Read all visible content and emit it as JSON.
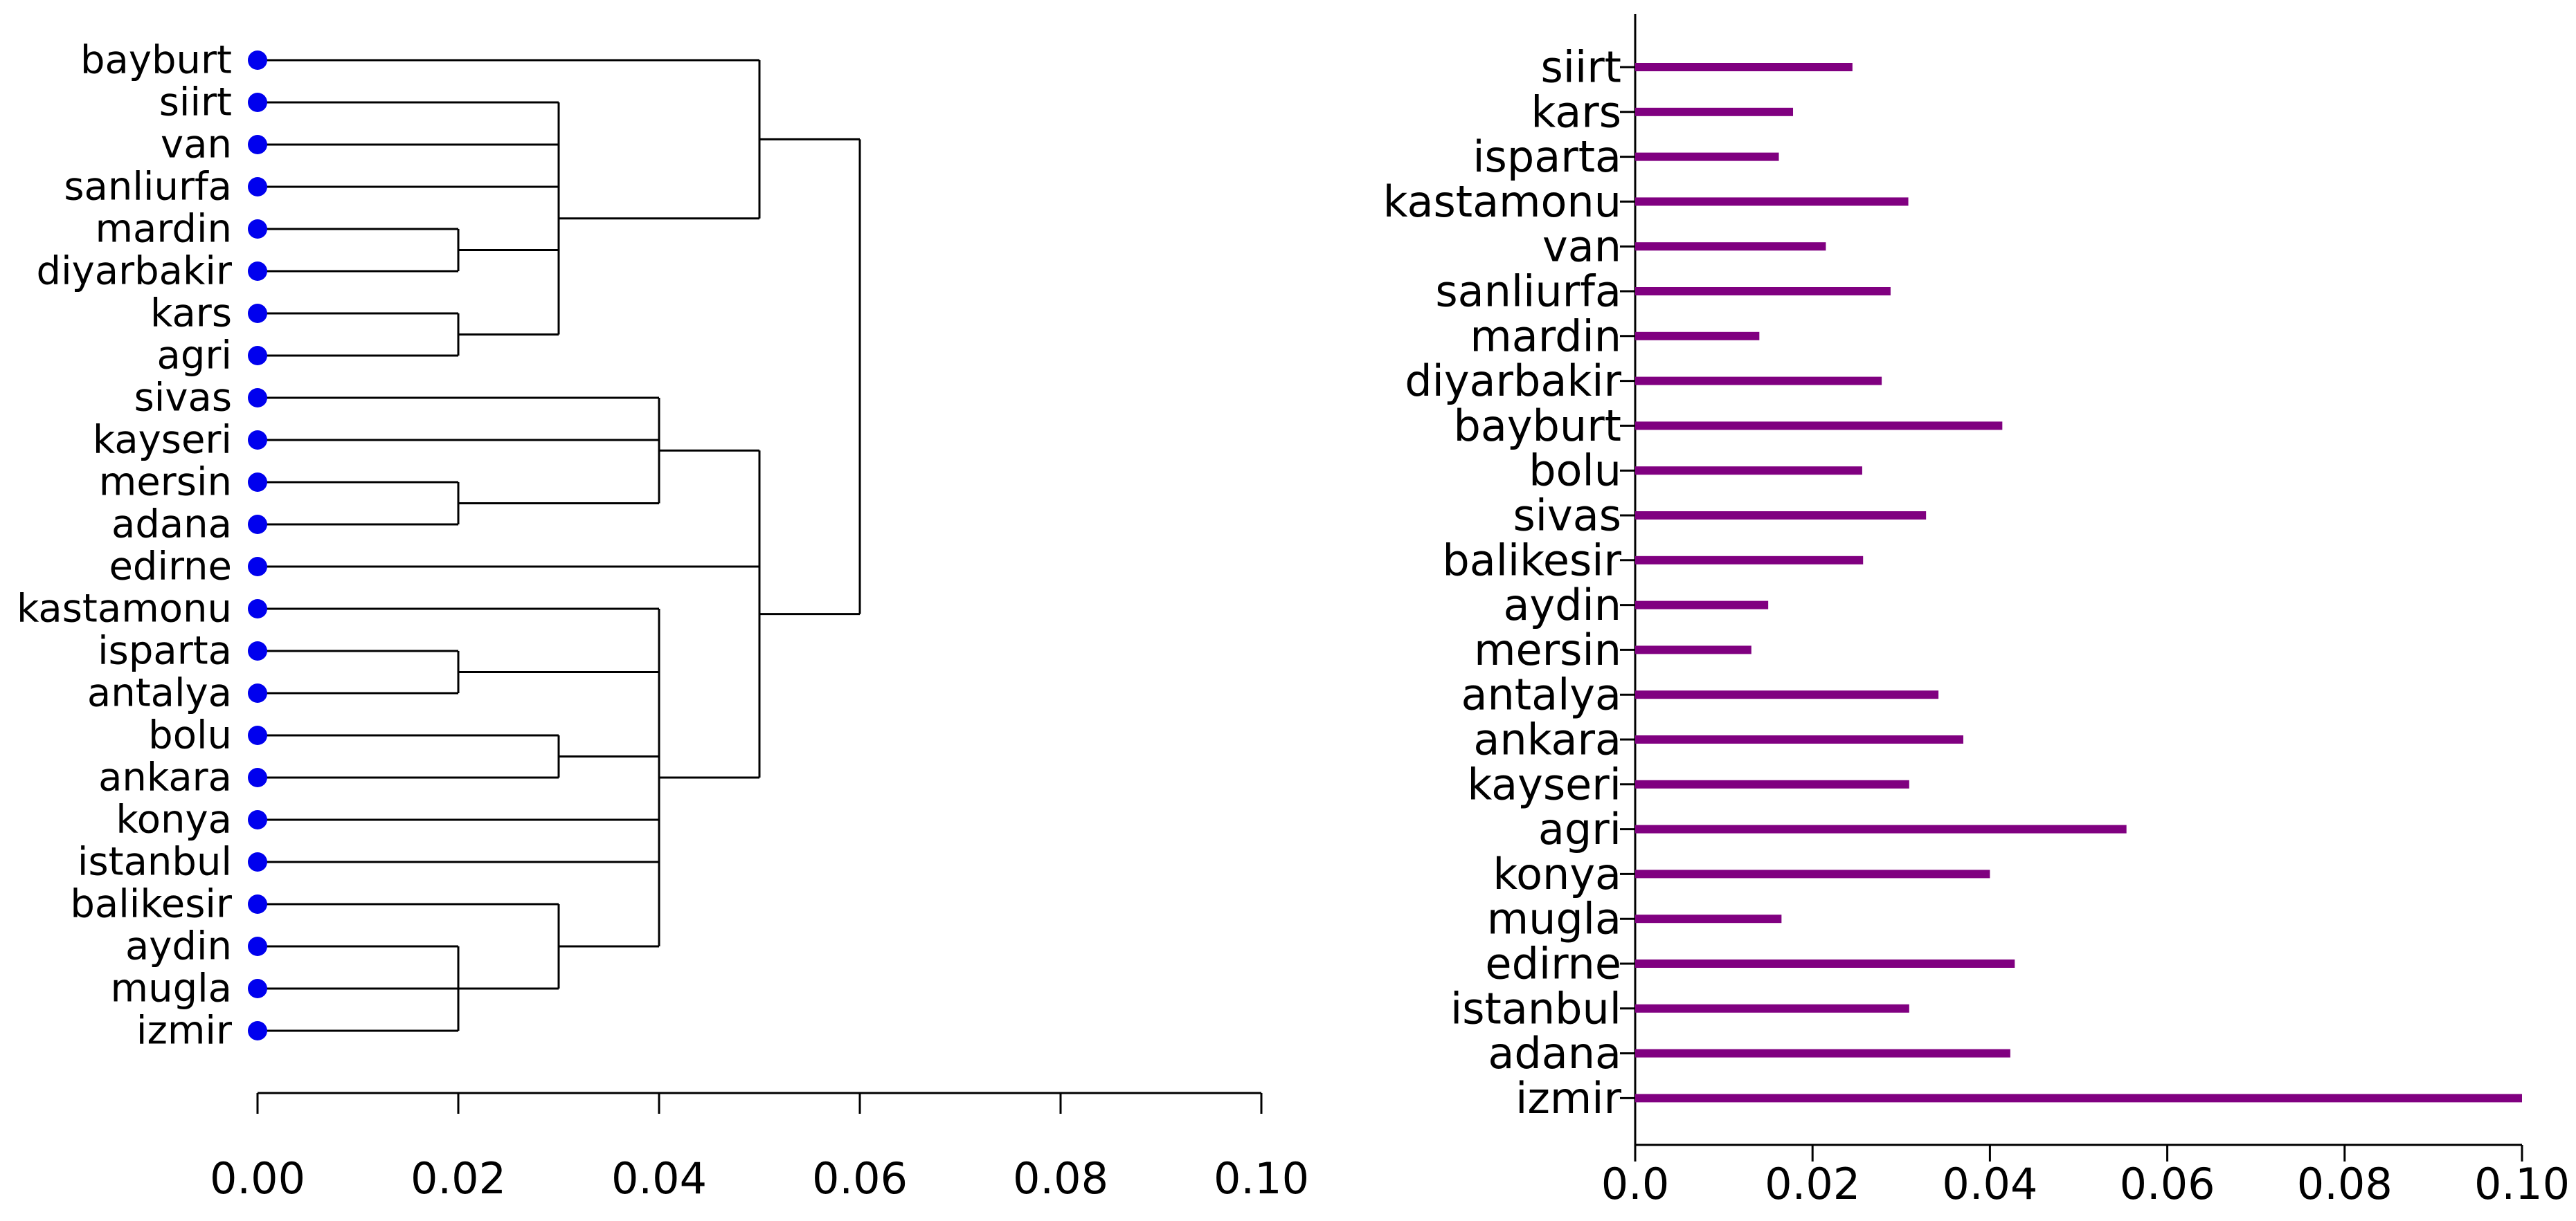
{
  "chart_data": [
    {
      "type": "dendrogram",
      "title": "",
      "xlabel": "",
      "ylabel": "",
      "xlim": [
        0,
        0.1
      ],
      "x_ticks": [
        "0.00",
        "0.02",
        "0.04",
        "0.06",
        "0.08",
        "0.10"
      ],
      "leaves": [
        "bayburt",
        "siirt",
        "van",
        "sanliurfa",
        "mardin",
        "diyarbakir",
        "kars",
        "agri",
        "sivas",
        "kayseri",
        "mersin",
        "adana",
        "edirne",
        "kastamonu",
        "isparta",
        "antalya",
        "bolu",
        "ankara",
        "konya",
        "istanbul",
        "balikesir",
        "aydin",
        "mugla",
        "izmir"
      ],
      "merges": [
        {
          "members": [
            "mardin",
            "diyarbakir"
          ],
          "height": 0.02
        },
        {
          "members": [
            "kars",
            "agri"
          ],
          "height": 0.02
        },
        {
          "members": [
            "mersin",
            "adana"
          ],
          "height": 0.02
        },
        {
          "members": [
            "isparta",
            "antalya"
          ],
          "height": 0.02
        },
        {
          "members": [
            "aydin",
            "mugla",
            "izmir"
          ],
          "height": 0.02
        },
        {
          "members": [
            "bolu",
            "ankara"
          ],
          "height": 0.03
        },
        {
          "members": [
            "balikesir",
            "aydin+mugla+izmir"
          ],
          "height": 0.03
        },
        {
          "members": [
            "siirt",
            "van",
            "sanliurfa",
            "mardin+diyarbakir",
            "kars+agri"
          ],
          "height": 0.03
        },
        {
          "members": [
            "sivas",
            "kayseri",
            "mersin+adana"
          ],
          "height": 0.04
        },
        {
          "members": [
            "kastamonu",
            "isparta+antalya",
            "bolu+ankara",
            "konya",
            "istanbul",
            "balikesir+aydin+mugla+izmir"
          ],
          "height": 0.04
        },
        {
          "members": [
            "bayburt",
            "siirt+van+sanliurfa+mardin+diyarbakir+kars+agri"
          ],
          "height": 0.05
        },
        {
          "members": [
            "sivas+kayseri+mersin+adana",
            "edirne",
            "kastamonu+...+izmir"
          ],
          "height": 0.05
        },
        {
          "members": [
            "bayburt+...+agri",
            "sivas+...+izmir"
          ],
          "height": 0.06
        }
      ],
      "colors": {
        "leaf_marker": "#0000ee",
        "line": "#000000"
      }
    },
    {
      "type": "bar",
      "orientation": "horizontal",
      "title": "",
      "xlabel": "",
      "ylabel": "",
      "xlim": [
        0,
        0.1
      ],
      "x_ticks": [
        "0.0",
        "0.02",
        "0.04",
        "0.06",
        "0.08",
        "0.10"
      ],
      "categories": [
        "siirt",
        "kars",
        "isparta",
        "kastamonu",
        "van",
        "sanliurfa",
        "mardin",
        "diyarbakir",
        "bayburt",
        "bolu",
        "sivas",
        "balikesir",
        "aydin",
        "mersin",
        "antalya",
        "ankara",
        "kayseri",
        "agri",
        "konya",
        "mugla",
        "edirne",
        "istanbul",
        "adana",
        "izmir"
      ],
      "values": [
        0.0245,
        0.0178,
        0.0162,
        0.0308,
        0.0215,
        0.0288,
        0.014,
        0.0278,
        0.0414,
        0.0256,
        0.0328,
        0.0257,
        0.015,
        0.0131,
        0.0342,
        0.037,
        0.0309,
        0.0554,
        0.04,
        0.0165,
        0.0428,
        0.0309,
        0.0423,
        0.1
      ],
      "colors": {
        "bar": "#800080"
      }
    }
  ]
}
